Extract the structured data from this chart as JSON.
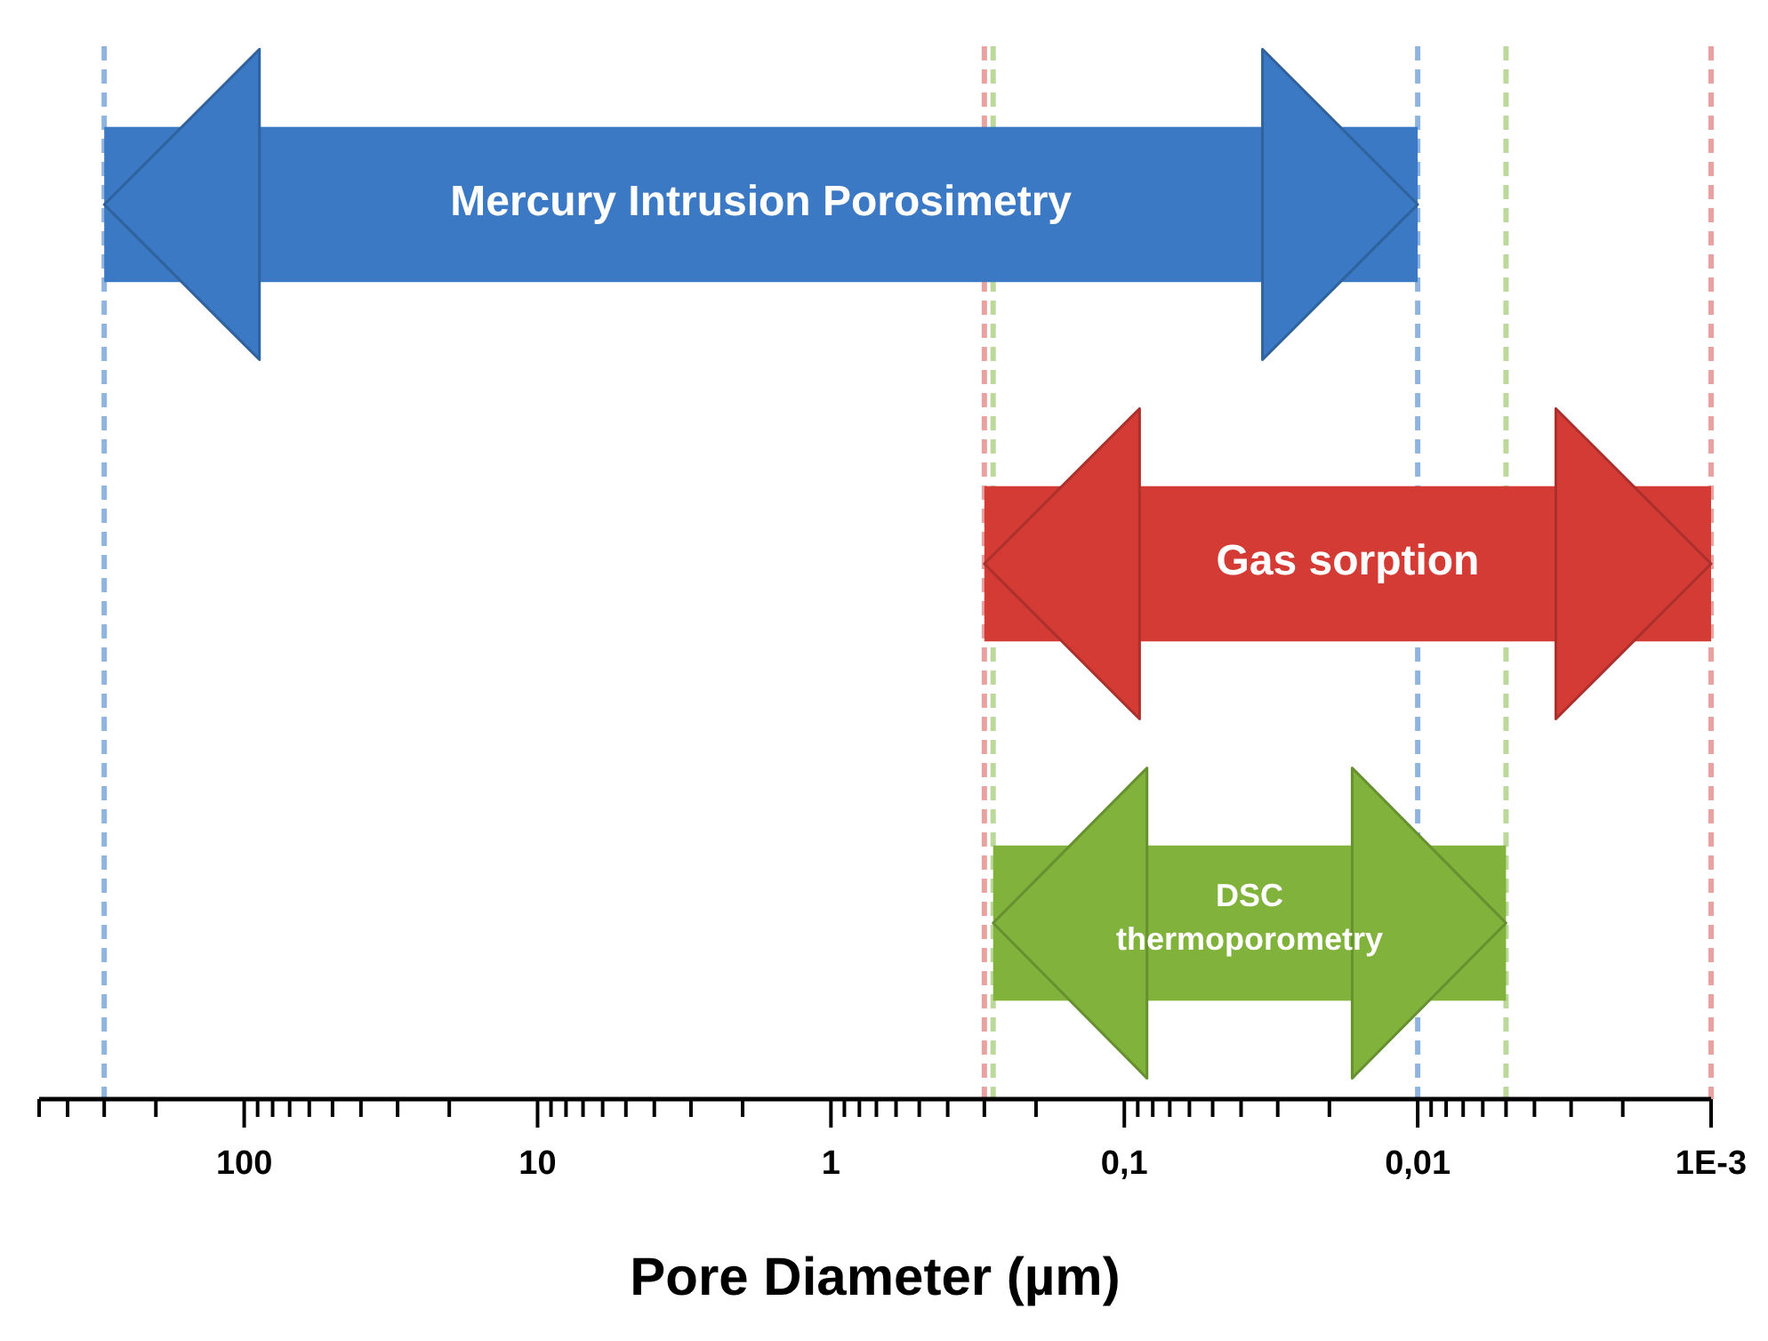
{
  "chart_data": {
    "type": "bar",
    "orientation": "horizontal",
    "log": "x",
    "xlabel": "Pore Diameter (µm)",
    "categories": [
      "Mercury Intrusion Porosimetry",
      "Gas sorption",
      "DSC thermoporometry"
    ],
    "base": [
      0.01,
      0.001,
      0.005
    ],
    "values": [
      299.99,
      0.299,
      0.275
    ],
    "colors": [
      "#3b79c4",
      "#d43b35",
      "#80b23c"
    ],
    "xlim": [
      500,
      0.001
    ],
    "xticks": [
      {
        "value": 500,
        "label": null
      },
      {
        "value": 400,
        "label": null
      },
      {
        "value": 300,
        "label": null
      },
      {
        "value": 200,
        "label": null
      },
      {
        "value": 100,
        "label": "100"
      },
      {
        "value": 90,
        "label": null
      },
      {
        "value": 80,
        "label": null
      },
      {
        "value": 70,
        "label": null
      },
      {
        "value": 60,
        "label": null
      },
      {
        "value": 50,
        "label": null
      },
      {
        "value": 40,
        "label": null
      },
      {
        "value": 30,
        "label": null
      },
      {
        "value": 20,
        "label": null
      },
      {
        "value": 10,
        "label": "10"
      },
      {
        "value": 9,
        "label": null
      },
      {
        "value": 8,
        "label": null
      },
      {
        "value": 7,
        "label": null
      },
      {
        "value": 6,
        "label": null
      },
      {
        "value": 5,
        "label": null
      },
      {
        "value": 4,
        "label": null
      },
      {
        "value": 3,
        "label": null
      },
      {
        "value": 2,
        "label": null
      },
      {
        "value": 1,
        "label": "1"
      },
      {
        "value": 0.9,
        "label": null
      },
      {
        "value": 0.8,
        "label": null
      },
      {
        "value": 0.7,
        "label": null
      },
      {
        "value": 0.6,
        "label": null
      },
      {
        "value": 0.5,
        "label": null
      },
      {
        "value": 0.4,
        "label": null
      },
      {
        "value": 0.3,
        "label": null
      },
      {
        "value": 0.2,
        "label": null
      },
      {
        "value": 0.1,
        "label": "0,1"
      },
      {
        "value": 0.09,
        "label": null
      },
      {
        "value": 0.08,
        "label": null
      },
      {
        "value": 0.07,
        "label": null
      },
      {
        "value": 0.06,
        "label": null
      },
      {
        "value": 0.05,
        "label": null
      },
      {
        "value": 0.04,
        "label": null
      },
      {
        "value": 0.03,
        "label": null
      },
      {
        "value": 0.02,
        "label": null
      },
      {
        "value": 0.01,
        "label": "0,01"
      },
      {
        "value": 0.009,
        "label": null
      },
      {
        "value": 0.008,
        "label": null
      },
      {
        "value": 0.007,
        "label": null
      },
      {
        "value": 0.006,
        "label": null
      },
      {
        "value": 0.005,
        "label": null
      },
      {
        "value": 0.004,
        "label": null
      },
      {
        "value": 0.003,
        "label": null
      },
      {
        "value": 0.002,
        "label": null
      },
      {
        "value": 0.001,
        "label": "1E-3"
      }
    ],
    "ref_lines": [
      {
        "axis": "x",
        "value": 300,
        "color": "#8fb4e0",
        "line_style": "dashed"
      },
      {
        "axis": "x",
        "value": 0.01,
        "color": "#8fb4e0",
        "line_style": "dashed"
      },
      {
        "axis": "x",
        "value": 0.3,
        "color": "#e8a3a0",
        "line_style": "dashed"
      },
      {
        "axis": "x",
        "value": 0.001,
        "color": "#e8a3a0",
        "line_style": "dashed"
      },
      {
        "axis": "x",
        "value": 0.28,
        "color": "#bcd89a",
        "line_style": "dashed"
      },
      {
        "axis": "x",
        "value": 0.005,
        "color": "#bcd89a",
        "line_style": "dashed"
      }
    ],
    "data_labels": false
  }
}
